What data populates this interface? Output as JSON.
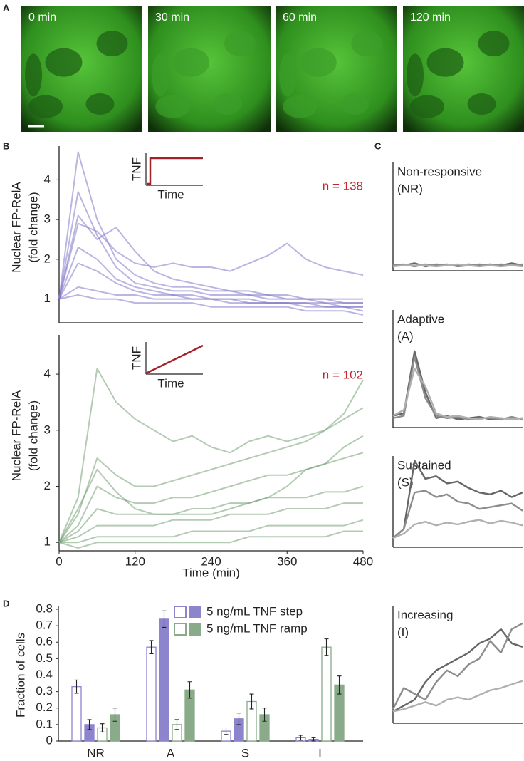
{
  "panel_labels": [
    "A",
    "B",
    "C",
    "D"
  ],
  "images": [
    {
      "label": "0 min"
    },
    {
      "label": "30 min"
    },
    {
      "label": "60 min"
    },
    {
      "label": "120 min"
    }
  ],
  "chart_data": [
    {
      "type": "line",
      "y_label": [
        "Nuclear FP-RelA",
        "(fold change)"
      ],
      "annotation": "n = 138",
      "inset": {
        "y_label": "TNF",
        "x_label": "Time",
        "shape": "step",
        "color": "#a3222a"
      },
      "xlim": [
        0,
        480
      ],
      "ylim": [
        0.4,
        4.85
      ],
      "yticks": [
        1,
        2,
        3,
        4
      ],
      "x": [
        0,
        30,
        60,
        90,
        120,
        150,
        180,
        210,
        240,
        270,
        300,
        330,
        360,
        390,
        420,
        450,
        480
      ],
      "series": [
        {
          "color": "#8279c9",
          "values": [
            1,
            4.7,
            3.0,
            2.0,
            1.6,
            1.4,
            1.3,
            1.3,
            1.2,
            1.2,
            1.1,
            1.1,
            1.0,
            1.0,
            1.0,
            0.9,
            0.9
          ]
        },
        {
          "color": "#8279c9",
          "values": [
            1,
            3.7,
            2.6,
            1.8,
            1.4,
            1.3,
            1.2,
            1.2,
            1.1,
            1.1,
            1.1,
            1.0,
            1.0,
            1.0,
            0.9,
            0.9,
            0.9
          ]
        },
        {
          "color": "#8279c9",
          "values": [
            1,
            2.9,
            2.7,
            2.2,
            1.9,
            1.8,
            1.9,
            1.8,
            1.8,
            1.7,
            1.9,
            2.1,
            2.4,
            2.0,
            1.8,
            1.7,
            1.6
          ]
        },
        {
          "color": "#8279c9",
          "values": [
            1,
            2.3,
            2.0,
            1.5,
            1.3,
            1.2,
            1.1,
            1.1,
            1.0,
            1.0,
            1.0,
            0.9,
            0.9,
            0.9,
            0.8,
            0.8,
            0.8
          ]
        },
        {
          "color": "#8279c9",
          "values": [
            1,
            1.9,
            1.7,
            1.4,
            1.2,
            1.1,
            1.1,
            1.0,
            1.0,
            1.0,
            0.9,
            0.9,
            0.9,
            0.8,
            0.8,
            0.8,
            0.7
          ]
        },
        {
          "color": "#8279c9",
          "values": [
            1,
            1.3,
            1.2,
            1.1,
            1.1,
            1.0,
            1.0,
            1.0,
            1.0,
            0.9,
            0.9,
            0.9,
            0.9,
            0.9,
            0.9,
            0.8,
            0.8
          ]
        },
        {
          "color": "#8279c9",
          "values": [
            1,
            1.1,
            1.0,
            1.0,
            0.9,
            0.9,
            0.9,
            0.9,
            0.8,
            0.8,
            0.8,
            0.8,
            0.8,
            0.7,
            0.7,
            0.7,
            0.6
          ]
        },
        {
          "color": "#8279c9",
          "values": [
            1,
            3.1,
            2.5,
            2.8,
            2.2,
            1.7,
            1.5,
            1.4,
            1.3,
            1.2,
            1.2,
            1.1,
            1.1,
            1.0,
            1.0,
            1.0,
            1.0
          ]
        }
      ]
    },
    {
      "type": "line",
      "y_label": [
        "Nuclear FP-RelA",
        "(fold change)"
      ],
      "x_label": "Time (min)",
      "annotation": "n = 102",
      "inset": {
        "y_label": "TNF",
        "x_label": "Time",
        "shape": "ramp",
        "color": "#a3222a"
      },
      "xlim": [
        0,
        480
      ],
      "xticks": [
        0,
        120,
        240,
        360,
        480
      ],
      "ylim": [
        0.85,
        4.7
      ],
      "yticks": [
        1,
        2,
        3,
        4
      ],
      "x": [
        0,
        30,
        60,
        90,
        120,
        150,
        180,
        210,
        240,
        270,
        300,
        330,
        360,
        390,
        420,
        450,
        480
      ],
      "series": [
        {
          "color": "#75a175",
          "values": [
            1,
            1.8,
            4.1,
            3.5,
            3.2,
            3.0,
            2.8,
            2.9,
            2.7,
            2.6,
            2.8,
            2.9,
            2.8,
            2.9,
            3.0,
            3.3,
            3.9
          ]
        },
        {
          "color": "#75a175",
          "values": [
            1,
            1.5,
            2.5,
            2.2,
            2.0,
            2.0,
            2.1,
            2.2,
            2.3,
            2.4,
            2.5,
            2.6,
            2.7,
            2.8,
            3.0,
            3.2,
            3.4
          ]
        },
        {
          "color": "#75a175",
          "values": [
            1,
            1.3,
            2.0,
            1.8,
            1.7,
            1.7,
            1.8,
            1.8,
            1.9,
            2.0,
            2.1,
            2.2,
            2.2,
            2.3,
            2.4,
            2.5,
            2.6
          ]
        },
        {
          "color": "#75a175",
          "values": [
            1,
            1.2,
            1.6,
            1.5,
            1.5,
            1.5,
            1.5,
            1.6,
            1.6,
            1.7,
            1.7,
            1.8,
            1.8,
            1.8,
            1.9,
            1.9,
            2.0
          ]
        },
        {
          "color": "#75a175",
          "values": [
            1,
            1.1,
            1.3,
            1.3,
            1.3,
            1.3,
            1.4,
            1.4,
            1.4,
            1.5,
            1.5,
            1.5,
            1.6,
            1.6,
            1.6,
            1.7,
            1.7
          ]
        },
        {
          "color": "#75a175",
          "values": [
            1,
            1.0,
            1.1,
            1.1,
            1.1,
            1.1,
            1.1,
            1.2,
            1.2,
            1.2,
            1.2,
            1.3,
            1.3,
            1.3,
            1.3,
            1.3,
            1.4
          ]
        },
        {
          "color": "#75a175",
          "values": [
            1,
            0.9,
            1.0,
            1.0,
            1.0,
            1.0,
            1.0,
            1.0,
            1.0,
            1.0,
            1.1,
            1.1,
            1.1,
            1.1,
            1.1,
            1.2,
            1.2
          ]
        },
        {
          "color": "#75a175",
          "values": [
            1,
            1.6,
            2.3,
            1.9,
            1.6,
            1.5,
            1.5,
            1.5,
            1.5,
            1.6,
            1.7,
            1.8,
            2.0,
            2.3,
            2.4,
            2.7,
            2.9
          ]
        }
      ]
    },
    {
      "type": "line",
      "title_lines": [
        "Non-responsive",
        "(NR)"
      ],
      "xlim": [
        0,
        480
      ],
      "ylim": [
        0,
        1
      ],
      "x": [
        0,
        40,
        80,
        120,
        160,
        200,
        240,
        280,
        320,
        360,
        400,
        440,
        480
      ],
      "series": [
        {
          "color": "#666666",
          "values": [
            0.06,
            0.05,
            0.07,
            0.04,
            0.06,
            0.05,
            0.05,
            0.06,
            0.05,
            0.06,
            0.05,
            0.07,
            0.05
          ]
        },
        {
          "color": "#8c8c8c",
          "values": [
            0.05,
            0.06,
            0.04,
            0.06,
            0.05,
            0.06,
            0.04,
            0.05,
            0.06,
            0.05,
            0.06,
            0.05,
            0.06
          ]
        },
        {
          "color": "#b0b0b0",
          "values": [
            0.04,
            0.05,
            0.05,
            0.05,
            0.04,
            0.05,
            0.06,
            0.05,
            0.04,
            0.05,
            0.04,
            0.05,
            0.04
          ]
        }
      ]
    },
    {
      "type": "line",
      "title_lines": [
        "Adaptive",
        "(A)"
      ],
      "xlim": [
        0,
        480
      ],
      "ylim": [
        0,
        1
      ],
      "x": [
        0,
        40,
        80,
        120,
        160,
        200,
        240,
        280,
        320,
        360,
        400,
        440,
        480
      ],
      "series": [
        {
          "color": "#666666",
          "values": [
            0.1,
            0.12,
            0.65,
            0.3,
            0.08,
            0.1,
            0.07,
            0.08,
            0.09,
            0.07,
            0.08,
            0.07,
            0.08
          ]
        },
        {
          "color": "#8c8c8c",
          "values": [
            0.08,
            0.1,
            0.6,
            0.25,
            0.1,
            0.08,
            0.09,
            0.07,
            0.08,
            0.08,
            0.07,
            0.09,
            0.07
          ]
        },
        {
          "color": "#b0b0b0",
          "values": [
            0.1,
            0.15,
            0.5,
            0.35,
            0.12,
            0.09,
            0.1,
            0.08,
            0.07,
            0.09,
            0.08,
            0.07,
            0.08
          ]
        }
      ]
    },
    {
      "type": "line",
      "title_lines": [
        "Sustained",
        "(S)"
      ],
      "xlim": [
        0,
        480
      ],
      "ylim": [
        0,
        1
      ],
      "x": [
        0,
        40,
        80,
        120,
        160,
        200,
        240,
        280,
        320,
        360,
        400,
        440,
        480
      ],
      "series": [
        {
          "color": "#666666",
          "values": [
            0.1,
            0.2,
            0.95,
            0.75,
            0.78,
            0.7,
            0.72,
            0.65,
            0.6,
            0.58,
            0.62,
            0.55,
            0.6
          ]
        },
        {
          "color": "#8c8c8c",
          "values": [
            0.1,
            0.2,
            0.6,
            0.62,
            0.55,
            0.58,
            0.5,
            0.48,
            0.42,
            0.44,
            0.46,
            0.48,
            0.4
          ]
        },
        {
          "color": "#b0b0b0",
          "values": [
            0.1,
            0.15,
            0.25,
            0.28,
            0.24,
            0.27,
            0.25,
            0.28,
            0.3,
            0.26,
            0.29,
            0.27,
            0.24
          ]
        }
      ]
    },
    {
      "type": "line",
      "title_lines": [
        "Increasing",
        "(I)"
      ],
      "xlim": [
        0,
        480
      ],
      "ylim": [
        0,
        1
      ],
      "x": [
        0,
        40,
        80,
        120,
        160,
        200,
        240,
        280,
        320,
        360,
        400,
        440,
        480
      ],
      "series": [
        {
          "color": "#666666",
          "values": [
            0.1,
            0.15,
            0.2,
            0.35,
            0.45,
            0.5,
            0.55,
            0.6,
            0.68,
            0.72,
            0.8,
            0.68,
            0.65
          ]
        },
        {
          "color": "#8c8c8c",
          "values": [
            0.12,
            0.3,
            0.25,
            0.2,
            0.35,
            0.45,
            0.4,
            0.5,
            0.55,
            0.7,
            0.6,
            0.8,
            0.85
          ]
        },
        {
          "color": "#b0b0b0",
          "values": [
            0.1,
            0.12,
            0.15,
            0.18,
            0.15,
            0.2,
            0.22,
            0.2,
            0.24,
            0.28,
            0.3,
            0.33,
            0.36
          ]
        }
      ]
    },
    {
      "type": "bar",
      "y_label": "Fraction of cells",
      "categories": [
        "NR",
        "A",
        "S",
        "I"
      ],
      "ylim": [
        0,
        0.8
      ],
      "yticks": [
        0,
        0.1,
        0.2,
        0.3,
        0.4,
        0.5,
        0.6,
        0.7,
        0.8
      ],
      "series": [
        {
          "name": "5 ng/mL TNF step",
          "color": "#8c84cc",
          "outline_values": [
            0.33,
            0.57,
            0.06,
            0.02
          ],
          "outline_errors": [
            0.04,
            0.04,
            0.02,
            0.015
          ],
          "values": [
            0.1,
            0.74,
            0.135,
            0.01
          ],
          "errors": [
            0.03,
            0.05,
            0.035,
            0.01
          ]
        },
        {
          "name": "5 ng/mL TNF ramp",
          "color": "#8aab8a",
          "outline_values": [
            0.08,
            0.1,
            0.24,
            0.57
          ],
          "outline_errors": [
            0.025,
            0.03,
            0.045,
            0.05
          ],
          "values": [
            0.16,
            0.31,
            0.16,
            0.34
          ],
          "errors": [
            0.04,
            0.05,
            0.04,
            0.055
          ]
        }
      ]
    }
  ]
}
